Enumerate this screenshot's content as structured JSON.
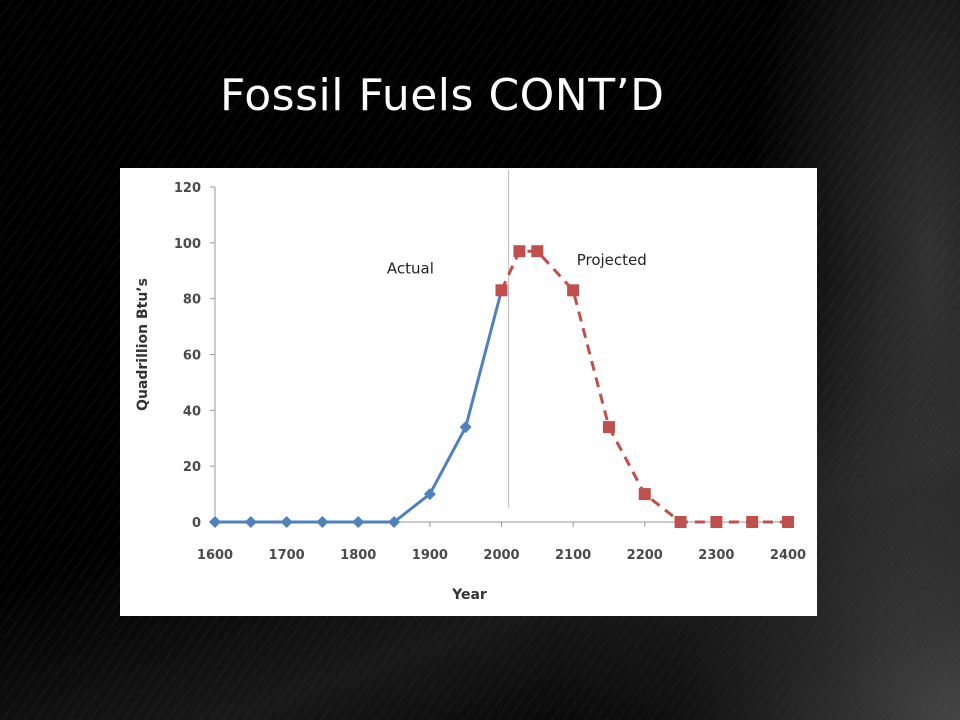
{
  "slide": {
    "title": "Fossil Fuels CONT’D"
  },
  "chart_data": {
    "type": "line",
    "title": "",
    "xlabel": "Year",
    "ylabel": "Quadrillion Btu’s",
    "xlim": [
      1600,
      2400
    ],
    "ylim": [
      0,
      120
    ],
    "x_ticks": [
      1600,
      1700,
      1800,
      1900,
      2000,
      2100,
      2200,
      2300,
      2400
    ],
    "y_ticks": [
      0,
      20,
      40,
      60,
      80,
      100,
      120
    ],
    "grid": false,
    "divider_x": 2010,
    "series": [
      {
        "name": "Actual",
        "color": "#4f81bd",
        "marker": "diamond",
        "line_style": "solid",
        "x": [
          1600,
          1650,
          1700,
          1750,
          1800,
          1850,
          1900,
          1950,
          2000
        ],
        "y": [
          0,
          0,
          0,
          0,
          0,
          0,
          10,
          34,
          83
        ]
      },
      {
        "name": "Projected",
        "color": "#c0504d",
        "marker": "square",
        "line_style": "dashed",
        "x": [
          2000,
          2025,
          2050,
          2100,
          2150,
          2200,
          2250,
          2300,
          2350,
          2400
        ],
        "y": [
          83,
          97,
          97,
          83,
          34,
          10,
          0,
          0,
          0,
          0
        ]
      }
    ],
    "annotations": [
      {
        "text": "Actual",
        "x": 1840,
        "y": 89
      },
      {
        "text": "Projected",
        "x": 2105,
        "y": 92
      }
    ]
  }
}
